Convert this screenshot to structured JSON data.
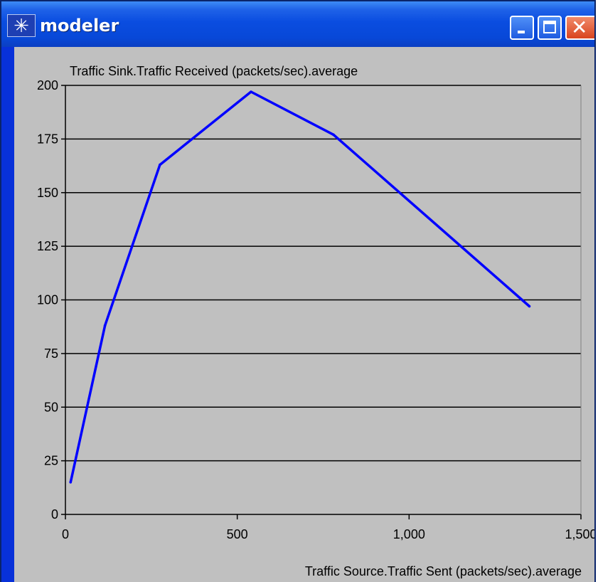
{
  "window": {
    "title": "modeler",
    "icon": "asterisk-app-icon",
    "controls": [
      "minimize",
      "maximize",
      "close"
    ],
    "accent": "#0848d8"
  },
  "chart_data": {
    "type": "line",
    "title": "Traffic Sink.Traffic Received (packets/sec).average",
    "xlabel": "Traffic Source.Traffic Sent (packets/sec).average",
    "ylabel": "",
    "xlim": [
      0,
      1500
    ],
    "ylim": [
      0,
      200
    ],
    "x_ticks": [
      "0",
      "500",
      "1,000",
      "1,500"
    ],
    "y_ticks": [
      "0",
      "25",
      "50",
      "75",
      "100",
      "125",
      "150",
      "175",
      "200"
    ],
    "grid": "horizontal",
    "series": [
      {
        "color": "#0000ff",
        "points": [
          [
            15,
            15
          ],
          [
            115,
            88
          ],
          [
            275,
            163
          ],
          [
            540,
            197
          ],
          [
            780,
            177
          ],
          [
            1350,
            97
          ]
        ]
      }
    ]
  }
}
